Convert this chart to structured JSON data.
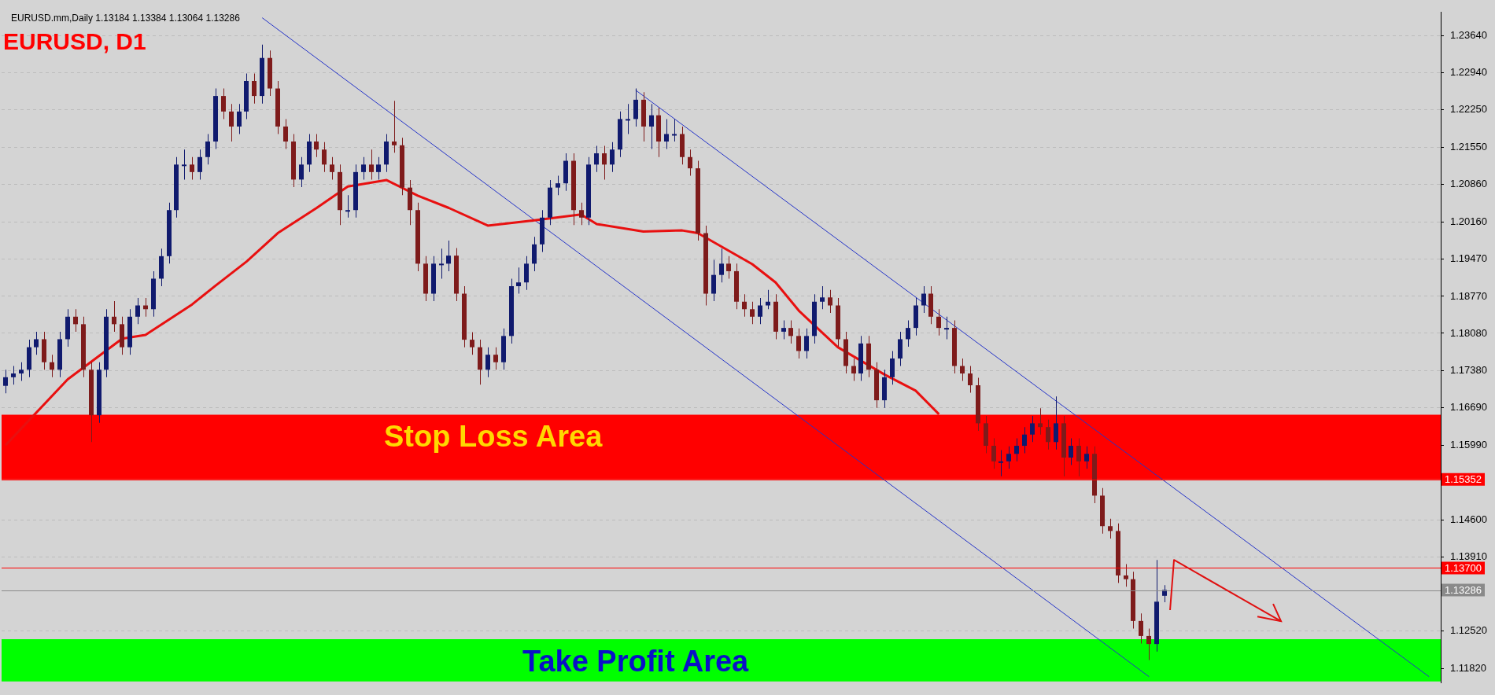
{
  "chart_data": {
    "type": "candlestick",
    "title": "EURUSD, D1",
    "subtitle": "EURUSD.mm,Daily 1.13184 1.13384 1.13064 1.13286",
    "categories": [
      null,
      null,
      null,
      null,
      null,
      null,
      null,
      null,
      null,
      null,
      null,
      null,
      null,
      null,
      null,
      null,
      null,
      null,
      null,
      null,
      null,
      null,
      null,
      null,
      null,
      null,
      null,
      null,
      null,
      null,
      null,
      null,
      null,
      null,
      null,
      null,
      null,
      null,
      null,
      null,
      null,
      null,
      null,
      null,
      null,
      null,
      null,
      null,
      null,
      null,
      null,
      null,
      null,
      null,
      null,
      null,
      null,
      null,
      null,
      null,
      null,
      null,
      null,
      null,
      null,
      null,
      null,
      null,
      null,
      null,
      null,
      null,
      null,
      null,
      null,
      null,
      null,
      null,
      null,
      null,
      null,
      null,
      null,
      null,
      null,
      null,
      null,
      null,
      null,
      null,
      null,
      null,
      null,
      null,
      null,
      null,
      null,
      null,
      null,
      null,
      null,
      null,
      null,
      null,
      null,
      null,
      null,
      null,
      null,
      null,
      null,
      null,
      null,
      null,
      null,
      null,
      null,
      null,
      null,
      null,
      null,
      null,
      null,
      null,
      null,
      null,
      null,
      null,
      null,
      null,
      null,
      null,
      null,
      null,
      null,
      null,
      null,
      null,
      null,
      null,
      null,
      null,
      null,
      null,
      null,
      null,
      null,
      null,
      null,
      null,
      null,
      null,
      null,
      null,
      null,
      null,
      null,
      null,
      null,
      null,
      null,
      null,
      null,
      null,
      null,
      null,
      null,
      null,
      null,
      null,
      null,
      null,
      null,
      null,
      null,
      null,
      null,
      null,
      null,
      null,
      null,
      null,
      null,
      null,
      null
    ],
    "ohlc": [
      [
        1.171,
        1.174,
        1.1696,
        1.1726
      ],
      [
        1.1726,
        1.1747,
        1.1712,
        1.1733
      ],
      [
        1.1733,
        1.1754,
        1.1719,
        1.174
      ],
      [
        1.174,
        1.1796,
        1.1726,
        1.1782
      ],
      [
        1.1782,
        1.1811,
        1.1768,
        1.1797
      ],
      [
        1.1797,
        1.1811,
        1.174,
        1.1754
      ],
      [
        1.1754,
        1.1768,
        1.1726,
        1.174
      ],
      [
        1.174,
        1.1811,
        1.1726,
        1.1797
      ],
      [
        1.1797,
        1.1853,
        1.1783,
        1.1839
      ],
      [
        1.1839,
        1.1853,
        1.1811,
        1.1825
      ],
      [
        1.1825,
        1.1839,
        1.1726,
        1.174
      ],
      [
        1.174,
        1.1754,
        1.1605,
        1.1655
      ],
      [
        1.1655,
        1.1754,
        1.1641,
        1.174
      ],
      [
        1.174,
        1.1853,
        1.1726,
        1.1839
      ],
      [
        1.1839,
        1.1868,
        1.1811,
        1.1825
      ],
      [
        1.1825,
        1.1839,
        1.1768,
        1.1782
      ],
      [
        1.1782,
        1.1853,
        1.1768,
        1.1839
      ],
      [
        1.1839,
        1.1874,
        1.1825,
        1.186
      ],
      [
        1.186,
        1.1874,
        1.1839,
        1.1853
      ],
      [
        1.1853,
        1.1924,
        1.1839,
        1.191
      ],
      [
        1.191,
        1.1966,
        1.1896,
        1.1952
      ],
      [
        1.1952,
        1.2052,
        1.1938,
        1.2038
      ],
      [
        1.2038,
        1.2137,
        1.2024,
        1.2123
      ],
      [
        1.2123,
        1.2151,
        1.2095,
        1.2123
      ],
      [
        1.2123,
        1.2137,
        1.2095,
        1.2109
      ],
      [
        1.2109,
        1.2151,
        1.2095,
        1.2137
      ],
      [
        1.2137,
        1.218,
        1.2123,
        1.2166
      ],
      [
        1.2166,
        1.2265,
        1.2152,
        1.2251
      ],
      [
        1.2251,
        1.2265,
        1.2208,
        1.2222
      ],
      [
        1.2222,
        1.2236,
        1.2166,
        1.2194
      ],
      [
        1.2194,
        1.2236,
        1.218,
        1.2222
      ],
      [
        1.2222,
        1.2293,
        1.2208,
        1.2279
      ],
      [
        1.2279,
        1.2293,
        1.2237,
        1.2251
      ],
      [
        1.2251,
        1.2347,
        1.2237,
        1.2322
      ],
      [
        1.2322,
        1.2336,
        1.2251,
        1.2265
      ],
      [
        1.2265,
        1.2279,
        1.218,
        1.2194
      ],
      [
        1.2194,
        1.2208,
        1.2152,
        1.2166
      ],
      [
        1.2166,
        1.218,
        1.2081,
        1.2095
      ],
      [
        1.2095,
        1.2137,
        1.2081,
        1.2123
      ],
      [
        1.2123,
        1.218,
        1.2109,
        1.2166
      ],
      [
        1.2166,
        1.218,
        1.2137,
        1.2151
      ],
      [
        1.2151,
        1.2165,
        1.2109,
        1.2123
      ],
      [
        1.2123,
        1.2137,
        1.2095,
        1.2109
      ],
      [
        1.2109,
        1.2123,
        1.201,
        1.2038
      ],
      [
        1.2038,
        1.2066,
        1.2024,
        1.2038
      ],
      [
        1.2038,
        1.2123,
        1.2024,
        1.2109
      ],
      [
        1.2109,
        1.2137,
        1.2095,
        1.2123
      ],
      [
        1.2123,
        1.2151,
        1.2095,
        1.2109
      ],
      [
        1.2109,
        1.2137,
        1.2095,
        1.2123
      ],
      [
        1.2123,
        1.218,
        1.2109,
        1.2166
      ],
      [
        1.2166,
        1.2242,
        1.2145,
        1.2159
      ],
      [
        1.2159,
        1.2173,
        1.2066,
        1.208
      ],
      [
        1.208,
        1.2094,
        1.201,
        1.2038
      ],
      [
        1.2038,
        1.2052,
        1.1924,
        1.1938
      ],
      [
        1.1938,
        1.1952,
        1.1868,
        1.1882
      ],
      [
        1.1882,
        1.1952,
        1.1868,
        1.1938
      ],
      [
        1.1938,
        1.1966,
        1.191,
        1.1938
      ],
      [
        1.1938,
        1.1981,
        1.1924,
        1.1953
      ],
      [
        1.1953,
        1.1967,
        1.1868,
        1.1882
      ],
      [
        1.1882,
        1.1896,
        1.1782,
        1.1796
      ],
      [
        1.1796,
        1.181,
        1.1768,
        1.1782
      ],
      [
        1.1782,
        1.1796,
        1.1712,
        1.174
      ],
      [
        1.174,
        1.1782,
        1.1726,
        1.1768
      ],
      [
        1.1768,
        1.1782,
        1.174,
        1.1754
      ],
      [
        1.1754,
        1.1817,
        1.174,
        1.1803
      ],
      [
        1.1803,
        1.191,
        1.1789,
        1.1896
      ],
      [
        1.1896,
        1.1931,
        1.1882,
        1.1903
      ],
      [
        1.1903,
        1.1952,
        1.1889,
        1.1938
      ],
      [
        1.1938,
        1.1988,
        1.1924,
        1.1974
      ],
      [
        1.1974,
        1.2038,
        1.196,
        1.2024
      ],
      [
        1.2024,
        1.2094,
        1.201,
        1.208
      ],
      [
        1.208,
        1.2102,
        1.2066,
        1.2088
      ],
      [
        1.2088,
        1.2144,
        1.2074,
        1.213
      ],
      [
        1.213,
        1.2144,
        1.201,
        1.2038
      ],
      [
        1.2038,
        1.2052,
        1.201,
        1.2024
      ],
      [
        1.2024,
        1.2137,
        1.201,
        1.2123
      ],
      [
        1.2123,
        1.2158,
        1.2109,
        1.2144
      ],
      [
        1.2144,
        1.2158,
        1.2095,
        1.2123
      ],
      [
        1.2123,
        1.2165,
        1.2109,
        1.2151
      ],
      [
        1.2151,
        1.2222,
        1.2137,
        1.2208
      ],
      [
        1.2208,
        1.2236,
        1.218,
        1.2208
      ],
      [
        1.2208,
        1.2265,
        1.2194,
        1.2244
      ],
      [
        1.2244,
        1.2258,
        1.2166,
        1.2194
      ],
      [
        1.2194,
        1.2236,
        1.2152,
        1.2215
      ],
      [
        1.2215,
        1.2229,
        1.2137,
        1.2166
      ],
      [
        1.2166,
        1.2208,
        1.2152,
        1.218
      ],
      [
        1.218,
        1.2208,
        1.2166,
        1.218
      ],
      [
        1.218,
        1.2194,
        1.2123,
        1.2137
      ],
      [
        1.2137,
        1.2151,
        1.2102,
        1.2116
      ],
      [
        1.2116,
        1.213,
        1.1981,
        1.1995
      ],
      [
        1.1995,
        1.2009,
        1.186,
        1.1882
      ],
      [
        1.1882,
        1.1945,
        1.1868,
        1.1917
      ],
      [
        1.1917,
        1.1966,
        1.1903,
        1.1938
      ],
      [
        1.1938,
        1.1952,
        1.191,
        1.1924
      ],
      [
        1.1924,
        1.1938,
        1.1853,
        1.1867
      ],
      [
        1.1867,
        1.1881,
        1.1839,
        1.1853
      ],
      [
        1.1853,
        1.1867,
        1.1825,
        1.1839
      ],
      [
        1.1839,
        1.1874,
        1.1825,
        1.186
      ],
      [
        1.186,
        1.1889,
        1.1853,
        1.1867
      ],
      [
        1.1867,
        1.1881,
        1.1797,
        1.1811
      ],
      [
        1.1811,
        1.1832,
        1.1797,
        1.1818
      ],
      [
        1.1818,
        1.1832,
        1.1789,
        1.1803
      ],
      [
        1.1803,
        1.1817,
        1.1761,
        1.1775
      ],
      [
        1.1775,
        1.1817,
        1.1761,
        1.1803
      ],
      [
        1.1803,
        1.1881,
        1.1789,
        1.1867
      ],
      [
        1.1867,
        1.1896,
        1.1853,
        1.1875
      ],
      [
        1.1875,
        1.1889,
        1.1846,
        1.186
      ],
      [
        1.186,
        1.1874,
        1.1783,
        1.1797
      ],
      [
        1.1797,
        1.1811,
        1.1733,
        1.1747
      ],
      [
        1.1747,
        1.1761,
        1.1719,
        1.1733
      ],
      [
        1.1733,
        1.1803,
        1.1719,
        1.1789
      ],
      [
        1.1789,
        1.1803,
        1.1726,
        1.174
      ],
      [
        1.174,
        1.1754,
        1.1669,
        1.1683
      ],
      [
        1.1683,
        1.174,
        1.1669,
        1.1726
      ],
      [
        1.1726,
        1.1775,
        1.1712,
        1.1761
      ],
      [
        1.1761,
        1.1811,
        1.1747,
        1.1797
      ],
      [
        1.1797,
        1.1832,
        1.1783,
        1.1818
      ],
      [
        1.1818,
        1.1874,
        1.1804,
        1.186
      ],
      [
        1.186,
        1.1896,
        1.1846,
        1.1882
      ],
      [
        1.1882,
        1.1896,
        1.1825,
        1.1839
      ],
      [
        1.1839,
        1.1853,
        1.1804,
        1.1818
      ],
      [
        1.1818,
        1.1839,
        1.1797,
        1.1818
      ],
      [
        1.1818,
        1.1832,
        1.1733,
        1.1747
      ],
      [
        1.1747,
        1.1761,
        1.1719,
        1.1733
      ],
      [
        1.1733,
        1.1747,
        1.1697,
        1.1711
      ],
      [
        1.1711,
        1.1725,
        1.1626,
        1.164
      ],
      [
        1.164,
        1.1654,
        1.1584,
        1.1598
      ],
      [
        1.1598,
        1.1612,
        1.1555,
        1.1569
      ],
      [
        1.1569,
        1.159,
        1.1541,
        1.1569
      ],
      [
        1.1569,
        1.1597,
        1.1555,
        1.1583
      ],
      [
        1.1583,
        1.1612,
        1.1569,
        1.1598
      ],
      [
        1.1598,
        1.1633,
        1.1584,
        1.1619
      ],
      [
        1.1619,
        1.1654,
        1.1605,
        1.164
      ],
      [
        1.164,
        1.1668,
        1.1619,
        1.1633
      ],
      [
        1.1633,
        1.1647,
        1.1591,
        1.1605
      ],
      [
        1.1605,
        1.169,
        1.1591,
        1.164
      ],
      [
        1.164,
        1.1654,
        1.1541,
        1.1576
      ],
      [
        1.1576,
        1.1612,
        1.1562,
        1.1598
      ],
      [
        1.1598,
        1.1612,
        1.1541,
        1.1569
      ],
      [
        1.1569,
        1.1597,
        1.1555,
        1.1583
      ],
      [
        1.1583,
        1.1597,
        1.1491,
        1.1505
      ],
      [
        1.1505,
        1.1519,
        1.1434,
        1.1448
      ],
      [
        1.1448,
        1.1462,
        1.1425,
        1.1439
      ],
      [
        1.1439,
        1.1453,
        1.1342,
        1.1356
      ],
      [
        1.1356,
        1.1377,
        1.1335,
        1.1349
      ],
      [
        1.1349,
        1.1363,
        1.1257,
        1.1271
      ],
      [
        1.1271,
        1.1285,
        1.1229,
        1.1243
      ],
      [
        1.1243,
        1.1257,
        1.1198,
        1.1228
      ],
      [
        1.1228,
        1.1385,
        1.1214,
        1.1307
      ],
      [
        1.1318,
        1.1338,
        1.1306,
        1.1329
      ],
      null,
      null,
      null,
      null,
      null,
      null,
      null,
      null,
      null,
      null,
      null,
      null,
      null,
      null,
      null,
      null,
      null,
      null,
      null,
      null,
      null,
      null,
      null,
      null,
      null,
      null,
      null,
      null,
      null,
      null,
      null,
      null,
      null,
      null,
      null
    ],
    "series": [
      {
        "type": "line",
        "color": "#e81010",
        "values": [
          1.1599,
          null,
          null,
          null,
          null,
          null,
          null,
          null,
          1.1722,
          null,
          null,
          null,
          null,
          null,
          null,
          1.1798,
          null,
          null,
          1.1805,
          null,
          null,
          null,
          null,
          null,
          1.1862,
          null,
          null,
          1.1897,
          null,
          null,
          null,
          1.1942,
          null,
          null,
          null,
          1.1995,
          null,
          null,
          null,
          null,
          1.2042,
          null,
          null,
          null,
          1.2082,
          null,
          null,
          null,
          null,
          1.2094,
          null,
          null,
          null,
          1.2065,
          null,
          null,
          null,
          1.2042,
          null,
          null,
          null,
          null,
          1.2009,
          null,
          null,
          null,
          null,
          null,
          1.2019,
          null,
          null,
          null,
          null,
          null,
          1.203,
          null,
          1.2012,
          null,
          null,
          null,
          null,
          null,
          1.1998,
          null,
          null,
          null,
          null,
          1.2,
          null,
          1.1995,
          null,
          null,
          null,
          null,
          null,
          null,
          1.1937,
          null,
          null,
          1.1903,
          null,
          null,
          1.185,
          null,
          null,
          null,
          null,
          1.1782,
          null,
          null,
          null,
          null,
          null,
          1.1731,
          null,
          null,
          null,
          1.1701,
          null,
          null,
          1.1657,
          null,
          null,
          null,
          null,
          null,
          null,
          null,
          null,
          null,
          null,
          null,
          null,
          null,
          null,
          null,
          null,
          null,
          null,
          null,
          null,
          null,
          null,
          null,
          null,
          null,
          null,
          null,
          null,
          null,
          null,
          null,
          null,
          null,
          null,
          null,
          null,
          null,
          null,
          null,
          null,
          null,
          null,
          null,
          null,
          null,
          null,
          null,
          null,
          null,
          null,
          null,
          null,
          null,
          null,
          null,
          null,
          null,
          null,
          null,
          null,
          null,
          null,
          null,
          null
        ]
      },
      {
        "type": "line",
        "color": "#2433c8",
        "values": [
          null,
          null,
          null,
          null,
          null,
          null,
          null,
          null,
          null,
          null,
          null,
          null,
          null,
          null,
          null,
          null,
          null,
          null,
          null,
          null,
          null,
          null,
          null,
          null,
          null,
          null,
          null,
          null,
          null,
          null,
          null,
          null,
          null,
          1.2397,
          null,
          null,
          null,
          null,
          null,
          null,
          null,
          null,
          null,
          null,
          null,
          null,
          null,
          null,
          null,
          null,
          null,
          null,
          null,
          null,
          null,
          null,
          null,
          null,
          null,
          null,
          null,
          null,
          null,
          null,
          null,
          null,
          null,
          null,
          null,
          null,
          null,
          null,
          null,
          null,
          null,
          null,
          null,
          null,
          null,
          null,
          null,
          null,
          null,
          null,
          null,
          null,
          null,
          null,
          null,
          null,
          null,
          null,
          null,
          null,
          null,
          null,
          null,
          null,
          null,
          null,
          null,
          null,
          null,
          null,
          null,
          null,
          null,
          null,
          null,
          null,
          null,
          null,
          null,
          null,
          null,
          null,
          null,
          null,
          null,
          null,
          null,
          null,
          null,
          null,
          null,
          null,
          null,
          null,
          null,
          null,
          null,
          null,
          null,
          null,
          null,
          null,
          null,
          null,
          null,
          null,
          null,
          null,
          null,
          null,
          null,
          null,
          null,
          1.1167,
          null,
          null,
          null,
          null,
          null,
          null,
          null,
          null,
          null,
          null,
          null,
          null,
          null,
          null,
          null,
          null,
          null,
          null,
          null,
          null,
          null,
          null,
          null,
          null,
          null,
          null,
          null,
          null,
          null,
          null,
          null,
          null,
          null,
          null,
          null,
          null,
          null
        ]
      },
      {
        "type": "line",
        "color": "#2433c8",
        "values": [
          null,
          null,
          null,
          null,
          null,
          null,
          null,
          null,
          null,
          null,
          null,
          null,
          null,
          null,
          null,
          null,
          null,
          null,
          null,
          null,
          null,
          null,
          null,
          null,
          null,
          null,
          null,
          null,
          null,
          null,
          null,
          null,
          null,
          null,
          null,
          null,
          null,
          null,
          null,
          null,
          null,
          null,
          null,
          null,
          null,
          null,
          null,
          null,
          null,
          null,
          null,
          null,
          null,
          null,
          null,
          null,
          null,
          null,
          null,
          null,
          null,
          null,
          null,
          null,
          null,
          null,
          null,
          null,
          null,
          null,
          null,
          null,
          null,
          null,
          null,
          null,
          null,
          null,
          null,
          null,
          null,
          1.2262,
          null,
          null,
          null,
          null,
          null,
          null,
          null,
          null,
          null,
          null,
          null,
          null,
          null,
          null,
          null,
          null,
          null,
          null,
          null,
          null,
          null,
          null,
          null,
          null,
          null,
          null,
          null,
          null,
          null,
          null,
          null,
          null,
          null,
          null,
          null,
          null,
          null,
          null,
          null,
          null,
          null,
          null,
          null,
          null,
          null,
          null,
          null,
          null,
          null,
          null,
          null,
          null,
          null,
          null,
          null,
          null,
          null,
          null,
          null,
          null,
          null,
          null,
          null,
          null,
          null,
          null,
          null,
          null,
          null,
          null,
          null,
          null,
          null,
          null,
          null,
          null,
          null,
          null,
          null,
          null,
          null,
          null,
          null,
          null,
          null,
          null,
          null,
          null,
          null,
          null,
          null,
          null,
          null,
          null,
          null,
          null,
          null,
          null,
          null,
          null,
          null,
          1.1167,
          null
        ]
      }
    ],
    "ylim": [
      1.1156,
      1.2407
    ],
    "yticks": [
      {
        "value": 1.2364,
        "label": "1.23640"
      },
      {
        "value": 1.2294,
        "label": "1.22940"
      },
      {
        "value": 1.2225,
        "label": "1.22250"
      },
      {
        "value": 1.2155,
        "label": "1.21550"
      },
      {
        "value": 1.2086,
        "label": "1.20860"
      },
      {
        "value": 1.2016,
        "label": "1.20160"
      },
      {
        "value": 1.1947,
        "label": "1.19470"
      },
      {
        "value": 1.1877,
        "label": "1.18770"
      },
      {
        "value": 1.1808,
        "label": "1.18080"
      },
      {
        "value": 1.1738,
        "label": "1.17380"
      },
      {
        "value": 1.1669,
        "label": "1.16690"
      },
      {
        "value": 1.1599,
        "label": "1.15990"
      },
      {
        "value": 1.146,
        "label": "1.14600"
      },
      {
        "value": 1.1391,
        "label": "1.13910"
      },
      {
        "value": 1.1252,
        "label": "1.12520"
      },
      {
        "value": 1.1182,
        "label": "1.11820"
      }
    ],
    "bands": [
      {
        "axis": "y",
        "from": 1.15352,
        "to": 1.1656,
        "label": "Stop Loss Area",
        "color": "#ff0000"
      },
      {
        "axis": "y",
        "from": 1.1158,
        "to": 1.1237,
        "label": "Take Profit Area",
        "color": "#00ff00"
      }
    ],
    "ref_lines": [
      {
        "axis": "y",
        "value": 1.15352,
        "label": "1.15352",
        "color": "#ff0000"
      },
      {
        "axis": "y",
        "value": 1.137,
        "label": "1.13700",
        "color": "#ff0000"
      },
      {
        "axis": "y",
        "value": 1.13286,
        "label": "1.13286",
        "color": "#8a8a8a"
      }
    ],
    "grid": "y",
    "tick_labels": "y"
  }
}
